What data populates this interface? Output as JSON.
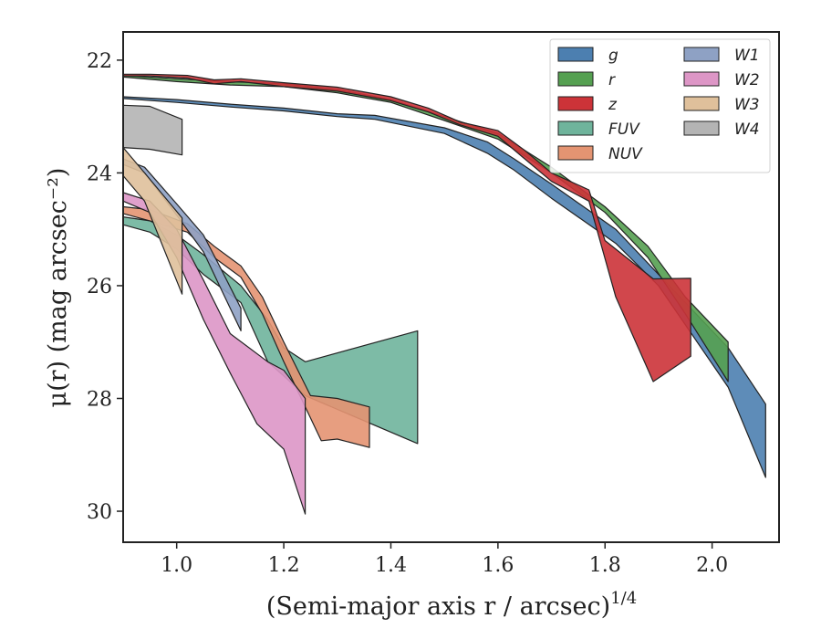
{
  "chart_data": {
    "type": "area",
    "xlabel": "(Semi-major axis r / arcsec)",
    "xlabel_sup": "1/4",
    "ylabel": "μ(r) (mag arcsec⁻²)",
    "xlim": [
      0.9,
      2.125
    ],
    "ylim": [
      30.55,
      21.5
    ],
    "y_inverted": true,
    "x_ticks": [
      1.0,
      1.2,
      1.4,
      1.6,
      1.8,
      2.0
    ],
    "x_tick_labels": [
      "1.0",
      "1.2",
      "1.4",
      "1.6",
      "1.8",
      "2.0"
    ],
    "y_ticks": [
      22,
      24,
      26,
      28,
      30
    ],
    "y_tick_labels": [
      "22",
      "24",
      "26",
      "28",
      "30"
    ],
    "grid": false,
    "legend_placement": "top-right",
    "series": [
      {
        "name": "g",
        "color": "#4c7fb0",
        "upper": [
          [
            0.9,
            22.65
          ],
          [
            1.0,
            22.7
          ],
          [
            1.1,
            22.78
          ],
          [
            1.2,
            22.85
          ],
          [
            1.3,
            22.95
          ],
          [
            1.37,
            22.98
          ],
          [
            1.5,
            23.2
          ],
          [
            1.58,
            23.45
          ],
          [
            1.63,
            23.75
          ],
          [
            1.7,
            24.2
          ],
          [
            1.82,
            25.0
          ],
          [
            1.9,
            25.8
          ],
          [
            2.03,
            27.1
          ],
          [
            2.1,
            28.1
          ]
        ],
        "lower": [
          [
            0.9,
            22.68
          ],
          [
            1.0,
            22.75
          ],
          [
            1.1,
            22.83
          ],
          [
            1.2,
            22.9
          ],
          [
            1.3,
            23.0
          ],
          [
            1.37,
            23.05
          ],
          [
            1.5,
            23.3
          ],
          [
            1.58,
            23.65
          ],
          [
            1.63,
            23.95
          ],
          [
            1.7,
            24.45
          ],
          [
            1.82,
            25.25
          ],
          [
            1.9,
            26.0
          ],
          [
            2.03,
            27.8
          ],
          [
            2.1,
            29.4
          ]
        ]
      },
      {
        "name": "r",
        "color": "#55a051",
        "upper": [
          [
            0.9,
            22.27
          ],
          [
            1.0,
            22.33
          ],
          [
            1.1,
            22.38
          ],
          [
            1.2,
            22.42
          ],
          [
            1.3,
            22.52
          ],
          [
            1.4,
            22.7
          ],
          [
            1.5,
            23.0
          ],
          [
            1.6,
            23.3
          ],
          [
            1.7,
            23.9
          ],
          [
            1.8,
            24.6
          ],
          [
            1.88,
            25.3
          ],
          [
            1.95,
            26.2
          ],
          [
            2.03,
            27.0
          ]
        ],
        "lower": [
          [
            0.9,
            22.3
          ],
          [
            1.0,
            22.38
          ],
          [
            1.1,
            22.44
          ],
          [
            1.2,
            22.47
          ],
          [
            1.3,
            22.58
          ],
          [
            1.4,
            22.75
          ],
          [
            1.5,
            23.07
          ],
          [
            1.6,
            23.4
          ],
          [
            1.7,
            24.0
          ],
          [
            1.8,
            24.7
          ],
          [
            1.88,
            25.5
          ],
          [
            1.95,
            26.5
          ],
          [
            2.03,
            27.7
          ]
        ]
      },
      {
        "name": "z",
        "color": "#cc3338",
        "upper": [
          [
            0.9,
            22.25
          ],
          [
            0.95,
            22.25
          ],
          [
            1.02,
            22.27
          ],
          [
            1.07,
            22.35
          ],
          [
            1.12,
            22.33
          ],
          [
            1.2,
            22.4
          ],
          [
            1.3,
            22.48
          ],
          [
            1.4,
            22.65
          ],
          [
            1.47,
            22.85
          ],
          [
            1.53,
            23.1
          ],
          [
            1.6,
            23.25
          ],
          [
            1.65,
            23.6
          ],
          [
            1.7,
            24.0
          ],
          [
            1.77,
            24.3
          ],
          [
            1.8,
            25.2
          ],
          [
            1.89,
            25.88
          ],
          [
            1.96,
            25.87
          ]
        ],
        "lower": [
          [
            0.9,
            22.28
          ],
          [
            0.95,
            22.28
          ],
          [
            1.02,
            22.32
          ],
          [
            1.07,
            22.42
          ],
          [
            1.12,
            22.38
          ],
          [
            1.2,
            22.47
          ],
          [
            1.3,
            22.55
          ],
          [
            1.4,
            22.72
          ],
          [
            1.47,
            22.92
          ],
          [
            1.53,
            23.15
          ],
          [
            1.6,
            23.35
          ],
          [
            1.65,
            23.75
          ],
          [
            1.7,
            24.15
          ],
          [
            1.77,
            24.5
          ],
          [
            1.82,
            26.2
          ],
          [
            1.89,
            27.7
          ],
          [
            1.96,
            27.25
          ]
        ]
      },
      {
        "name": "FUV",
        "color": "#6fb49c",
        "upper": [
          [
            0.9,
            24.78
          ],
          [
            0.95,
            24.85
          ],
          [
            1.0,
            25.1
          ],
          [
            1.05,
            25.45
          ],
          [
            1.12,
            26.0
          ],
          [
            1.17,
            26.6
          ],
          [
            1.2,
            27.1
          ],
          [
            1.24,
            27.35
          ],
          [
            1.45,
            26.8
          ]
        ],
        "lower": [
          [
            0.9,
            24.92
          ],
          [
            0.95,
            25.05
          ],
          [
            1.0,
            25.35
          ],
          [
            1.05,
            25.8
          ],
          [
            1.12,
            26.3
          ],
          [
            1.17,
            27.35
          ],
          [
            1.2,
            27.6
          ],
          [
            1.24,
            27.95
          ],
          [
            1.45,
            28.8
          ]
        ]
      },
      {
        "name": "NUV",
        "color": "#e49472",
        "upper": [
          [
            0.9,
            24.6
          ],
          [
            0.95,
            24.65
          ],
          [
            1.02,
            24.9
          ],
          [
            1.07,
            25.3
          ],
          [
            1.12,
            25.65
          ],
          [
            1.16,
            26.2
          ],
          [
            1.2,
            27.0
          ],
          [
            1.25,
            27.95
          ],
          [
            1.3,
            28.0
          ],
          [
            1.36,
            28.15
          ]
        ],
        "lower": [
          [
            0.9,
            24.72
          ],
          [
            0.95,
            24.85
          ],
          [
            1.02,
            25.05
          ],
          [
            1.07,
            25.5
          ],
          [
            1.12,
            25.85
          ],
          [
            1.16,
            26.5
          ],
          [
            1.2,
            27.35
          ],
          [
            1.27,
            28.75
          ],
          [
            1.3,
            28.72
          ],
          [
            1.36,
            28.87
          ]
        ]
      },
      {
        "name": "W1",
        "color": "#8ea1c4",
        "upper": [
          [
            0.9,
            23.75
          ],
          [
            0.94,
            23.9
          ],
          [
            1.0,
            24.55
          ],
          [
            1.05,
            25.1
          ],
          [
            1.08,
            25.65
          ],
          [
            1.12,
            26.4
          ]
        ],
        "lower": [
          [
            0.9,
            23.85
          ],
          [
            0.94,
            24.0
          ],
          [
            1.0,
            24.75
          ],
          [
            1.05,
            25.4
          ],
          [
            1.08,
            26.0
          ],
          [
            1.12,
            26.8
          ]
        ]
      },
      {
        "name": "W2",
        "color": "#dd96c6",
        "upper": [
          [
            0.9,
            24.35
          ],
          [
            0.95,
            24.5
          ],
          [
            1.0,
            25.0
          ],
          [
            1.05,
            25.9
          ],
          [
            1.1,
            26.85
          ],
          [
            1.17,
            27.35
          ],
          [
            1.2,
            27.5
          ],
          [
            1.24,
            28.0
          ]
        ],
        "lower": [
          [
            0.9,
            24.5
          ],
          [
            0.95,
            24.7
          ],
          [
            1.0,
            25.5
          ],
          [
            1.05,
            26.6
          ],
          [
            1.1,
            27.55
          ],
          [
            1.15,
            28.45
          ],
          [
            1.2,
            28.9
          ],
          [
            1.24,
            30.05
          ]
        ]
      },
      {
        "name": "W3",
        "color": "#dfc09b",
        "upper": [
          [
            0.9,
            23.55
          ],
          [
            0.94,
            24.0
          ],
          [
            1.01,
            24.8
          ]
        ],
        "lower": [
          [
            0.9,
            24.05
          ],
          [
            0.94,
            24.5
          ],
          [
            1.01,
            26.15
          ]
        ]
      },
      {
        "name": "W4",
        "color": "#b4b4b4",
        "upper": [
          [
            0.9,
            22.8
          ],
          [
            0.95,
            22.82
          ],
          [
            1.01,
            23.05
          ]
        ],
        "lower": [
          [
            0.9,
            23.55
          ],
          [
            0.95,
            23.58
          ],
          [
            1.01,
            23.68
          ]
        ]
      }
    ]
  }
}
